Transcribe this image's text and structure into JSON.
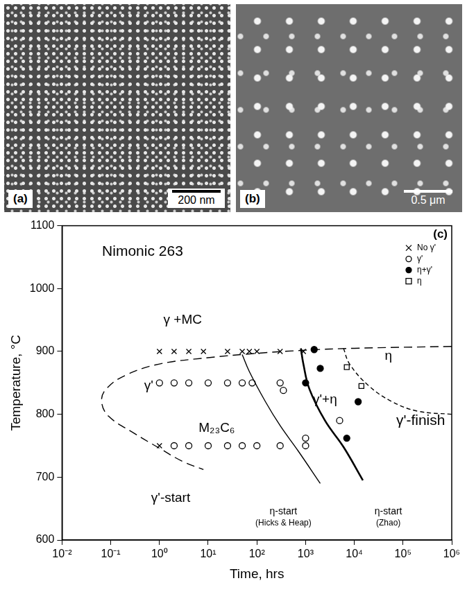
{
  "panels": [
    {
      "label": "(a)",
      "scale_bar": "200 nm"
    },
    {
      "label": "(b)",
      "scale_bar": "0.5 μm"
    }
  ],
  "chart_data": {
    "type": "scatter",
    "panel_label": "(c)",
    "x_label": "Time, hrs",
    "y_label": "Temperature, °C",
    "log": "x",
    "grid": false,
    "legend": "upper right",
    "xlim": [
      0.01,
      1000000
    ],
    "ylim": [
      600,
      1100
    ],
    "xticks": [
      {
        "value": 0.01,
        "label": "10⁻²"
      },
      {
        "value": 0.1,
        "label": "10⁻¹"
      },
      {
        "value": 1,
        "label": "10⁰"
      },
      {
        "value": 10,
        "label": "10¹"
      },
      {
        "value": 100,
        "label": "10²"
      },
      {
        "value": 1000,
        "label": "10³"
      },
      {
        "value": 10000,
        "label": "10⁴"
      },
      {
        "value": 100000,
        "label": "10⁵"
      },
      {
        "value": 1000000,
        "label": "10⁶"
      }
    ],
    "yticks": [
      600,
      700,
      800,
      900,
      1000,
      1100
    ],
    "series": [
      {
        "name": "No γ'",
        "marker": "x",
        "color": "#000000",
        "x": [
          1,
          2,
          4,
          8,
          25,
          50,
          70,
          100,
          300,
          900,
          1
        ],
        "values": [
          900,
          900,
          900,
          900,
          900,
          900,
          900,
          900,
          900,
          900,
          750
        ]
      },
      {
        "name": "γ'",
        "marker": "open_circle",
        "color": "#000000",
        "x": [
          1,
          2,
          4,
          10,
          25,
          50,
          80,
          300,
          350,
          2,
          4,
          10,
          25,
          50,
          100,
          300,
          1000,
          1000,
          5000
        ],
        "values": [
          850,
          850,
          850,
          850,
          850,
          850,
          850,
          850,
          838,
          750,
          750,
          750,
          750,
          750,
          750,
          750,
          750,
          762,
          790
        ]
      },
      {
        "name": "η+γ'",
        "marker": "filled_circle",
        "color": "#000000",
        "x": [
          1500,
          2000,
          1000,
          12000,
          7000
        ],
        "values": [
          903,
          873,
          850,
          820,
          762
        ]
      },
      {
        "name": "η",
        "marker": "open_square",
        "color": "#000000",
        "x": [
          7000,
          14000
        ],
        "values": [
          875,
          845
        ]
      }
    ],
    "curves": [
      {
        "line_style": "dashed",
        "color": "#000000",
        "x": [
          1000000,
          10000,
          1000,
          100,
          10,
          1,
          0.2,
          0.08,
          0.065,
          0.09,
          0.3,
          1,
          3,
          8
        ],
        "values": [
          908,
          905,
          902,
          897,
          890,
          880,
          862,
          840,
          820,
          797,
          770,
          746,
          725,
          712
        ]
      },
      {
        "line_style": "solid",
        "color": "#000000",
        "x": [
          50,
          70,
          150,
          300,
          700,
          2000
        ],
        "values": [
          895,
          868,
          820,
          782,
          742,
          690
        ]
      },
      {
        "line_style": "thick",
        "color": "#000000",
        "x": [
          800,
          900,
          1200,
          2500,
          6000,
          15000
        ],
        "values": [
          905,
          880,
          840,
          790,
          748,
          695
        ]
      },
      {
        "line_style": "short_dashed",
        "color": "#000000",
        "x": [
          6000,
          8000,
          20000,
          60000,
          200000,
          1000000
        ],
        "values": [
          905,
          880,
          845,
          820,
          805,
          800
        ]
      }
    ],
    "annotations": [
      {
        "text": [
          "Nimonic 263"
        ],
        "x": 0.45,
        "y": 1058
      },
      {
        "text": [
          "γ +MC"
        ],
        "x": 3,
        "y": 950
      },
      {
        "text": [
          "γ'"
        ],
        "x": 0.6,
        "y": 845
      },
      {
        "text": [
          "M₂₃C₆"
        ],
        "x": 15,
        "y": 778
      },
      {
        "text": [
          "γ'+η"
        ],
        "x": 2500,
        "y": 823
      },
      {
        "text": [
          "η"
        ],
        "x": 50000,
        "y": 893
      },
      {
        "text": [
          "γ'-finish"
        ],
        "x": 230000,
        "y": 790
      },
      {
        "text": [
          "γ'-start"
        ],
        "x": 1.7,
        "y": 666
      },
      {
        "text": [
          "η-start",
          "(Hicks & Heap)"
        ],
        "x": 350,
        "y": 645
      },
      {
        "text": [
          "η-start",
          "(Zhao)"
        ],
        "x": 50000,
        "y": 645
      }
    ]
  }
}
